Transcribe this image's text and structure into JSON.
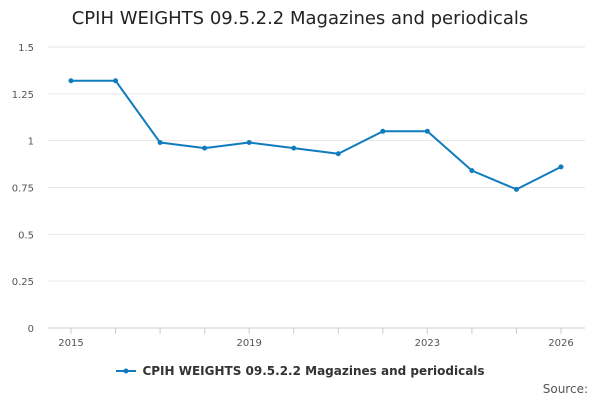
{
  "chart_data": {
    "type": "line",
    "title": "CPIH WEIGHTS 09.5.2.2 Magazines and periodicals",
    "xlabel": "",
    "ylabel": "",
    "x": [
      2015,
      2016,
      2017,
      2018,
      2019,
      2020,
      2021,
      2022,
      2023,
      2024,
      2025,
      2026
    ],
    "x_tick_labels": [
      "2015",
      "2019",
      "2023",
      "2026"
    ],
    "y_ticks": [
      "0",
      "0.25",
      "0.5",
      "0.75",
      "1",
      "1.25",
      "1.5"
    ],
    "ylim": [
      0,
      1.5
    ],
    "grid": "horizontal",
    "legend_position": "bottom",
    "series": [
      {
        "name": "CPIH WEIGHTS 09.5.2.2 Magazines and periodicals",
        "color": "#0f7cbf",
        "values": [
          1.32,
          1.32,
          0.99,
          0.96,
          0.99,
          0.96,
          0.93,
          1.05,
          1.05,
          0.84,
          0.74,
          0.86
        ]
      }
    ]
  },
  "source_label": "Source:"
}
